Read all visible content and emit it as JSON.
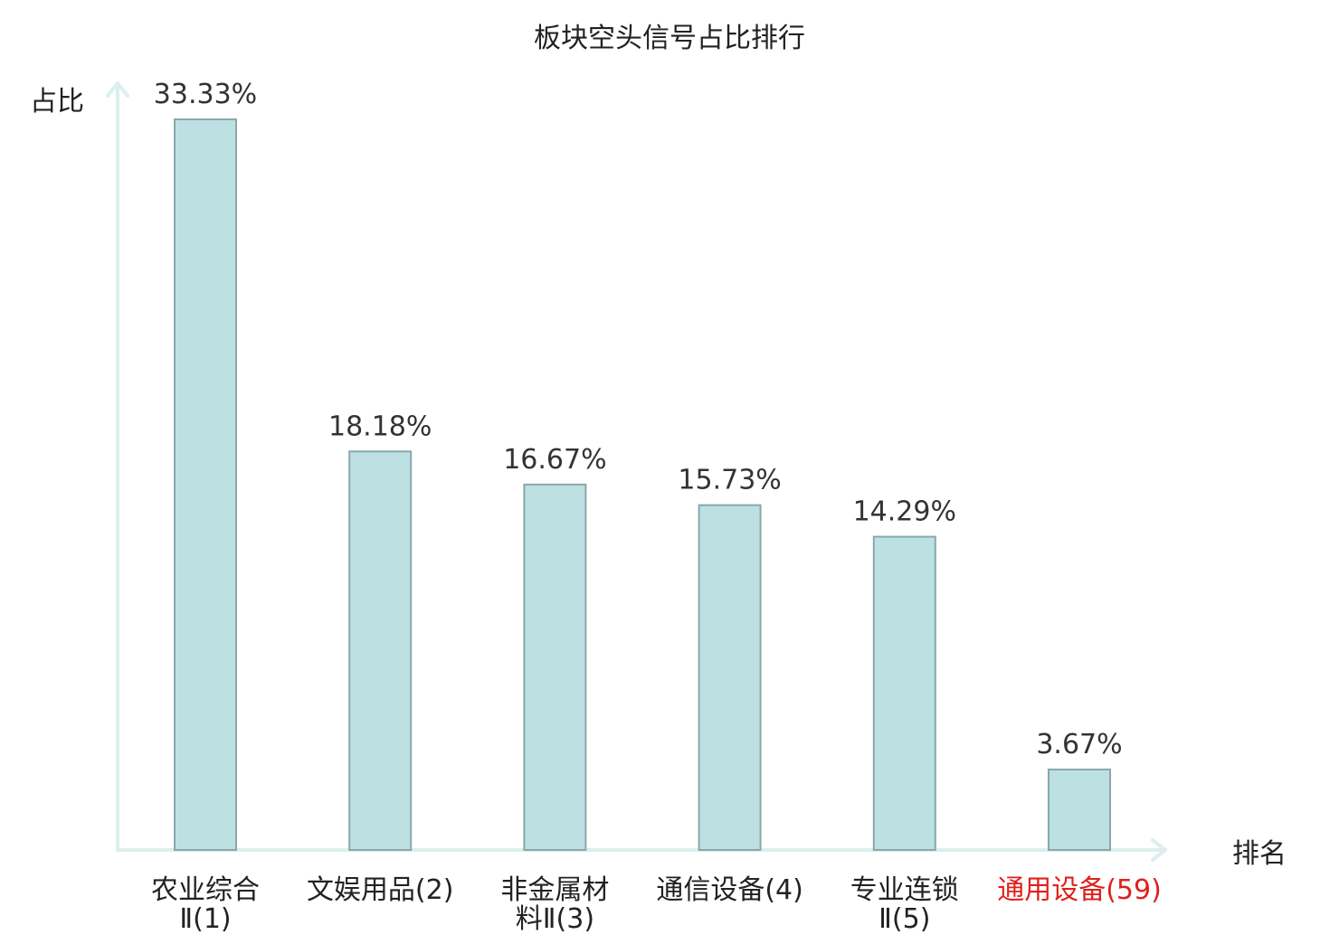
{
  "chart_data": {
    "type": "bar",
    "title": "板块空头信号占比排行",
    "ylabel": "占比",
    "xlabel": "排名",
    "ylim": [
      0,
      35
    ],
    "grid": false,
    "categories": [
      {
        "lines": [
          "农业综合",
          "Ⅱ(1)"
        ],
        "highlight": false
      },
      {
        "lines": [
          "文娱用品(2)"
        ],
        "highlight": false
      },
      {
        "lines": [
          "非金属材",
          "料Ⅱ(3)"
        ],
        "highlight": false
      },
      {
        "lines": [
          "通信设备(4)"
        ],
        "highlight": false
      },
      {
        "lines": [
          "专业连锁",
          "Ⅱ(5)"
        ],
        "highlight": false
      },
      {
        "lines": [
          "通用设备(59)"
        ],
        "highlight": true
      }
    ],
    "values": [
      33.33,
      18.18,
      16.67,
      15.73,
      14.29,
      3.67
    ],
    "value_labels": [
      "33.33%",
      "18.18%",
      "16.67%",
      "15.73%",
      "14.29%",
      "3.67%"
    ]
  },
  "colors": {
    "bar_fill": "#bde0e3",
    "bar_stroke": "#8aa8aa",
    "axis": "#dcefec",
    "text": "#333333",
    "title": "#222222",
    "highlight": "#e0201b"
  }
}
